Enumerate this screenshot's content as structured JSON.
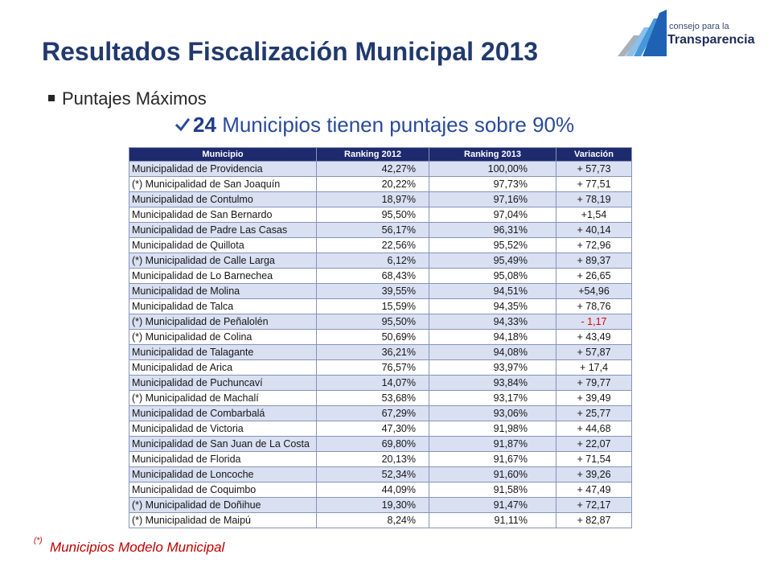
{
  "title": "Resultados Fiscalización Municipal 2013",
  "logo": {
    "line1": "consejo para la",
    "line2": "Transparencia",
    "icon": "logo-mark-icon"
  },
  "bullet": {
    "icon": "square-bullet-icon",
    "text": "Puntajes Máximos"
  },
  "highlight": {
    "icon": "check-icon",
    "number": "24",
    "text": "Municipios tienen puntajes sobre 90%"
  },
  "table": {
    "headers": [
      "Municipio",
      "Ranking 2012",
      "Ranking 2013",
      "Variación"
    ],
    "rows": [
      {
        "municipio": "Municipalidad de Providencia",
        "ranking_2012": "42,27%",
        "ranking_2013": "100,00%",
        "variacion": "+ 57,73"
      },
      {
        "municipio": "(*) Municipalidad de San Joaquín",
        "ranking_2012": "20,22%",
        "ranking_2013": "97,73%",
        "variacion": "+ 77,51"
      },
      {
        "municipio": "Municipalidad de Contulmo",
        "ranking_2012": "18,97%",
        "ranking_2013": "97,16%",
        "variacion": "+ 78,19"
      },
      {
        "municipio": "Municipalidad de San Bernardo",
        "ranking_2012": "95,50%",
        "ranking_2013": "97,04%",
        "variacion": "+1,54"
      },
      {
        "municipio": "Municipalidad de Padre Las Casas",
        "ranking_2012": "56,17%",
        "ranking_2013": "96,31%",
        "variacion": "+ 40,14"
      },
      {
        "municipio": "Municipalidad de Quillota",
        "ranking_2012": "22,56%",
        "ranking_2013": "95,52%",
        "variacion": "+ 72,96"
      },
      {
        "municipio": "(*) Municipalidad de Calle Larga",
        "ranking_2012": "6,12%",
        "ranking_2013": "95,49%",
        "variacion": "+ 89,37"
      },
      {
        "municipio": "Municipalidad de Lo Barnechea",
        "ranking_2012": "68,43%",
        "ranking_2013": "95,08%",
        "variacion": "+ 26,65"
      },
      {
        "municipio": "Municipalidad de Molina",
        "ranking_2012": "39,55%",
        "ranking_2013": "94,51%",
        "variacion": "+54,96"
      },
      {
        "municipio": "Municipalidad de Talca",
        "ranking_2012": "15,59%",
        "ranking_2013": "94,35%",
        "variacion": "+ 78,76"
      },
      {
        "municipio": "(*) Municipalidad de Peñalolén",
        "ranking_2012": "95,50%",
        "ranking_2013": "94,33%",
        "variacion": "- 1,17"
      },
      {
        "municipio": "(*) Municipalidad de Colina",
        "ranking_2012": "50,69%",
        "ranking_2013": "94,18%",
        "variacion": "+ 43,49"
      },
      {
        "municipio": "Municipalidad de Talagante",
        "ranking_2012": "36,21%",
        "ranking_2013": "94,08%",
        "variacion": "+ 57,87"
      },
      {
        "municipio": "Municipalidad de Arica",
        "ranking_2012": "76,57%",
        "ranking_2013": "93,97%",
        "variacion": "+ 17,4"
      },
      {
        "municipio": "Municipalidad de Puchuncaví",
        "ranking_2012": "14,07%",
        "ranking_2013": "93,84%",
        "variacion": "+ 79,77"
      },
      {
        "municipio": "(*) Municipalidad de Machalí",
        "ranking_2012": "53,68%",
        "ranking_2013": "93,17%",
        "variacion": "+ 39,49"
      },
      {
        "municipio": "Municipalidad de Combarbalá",
        "ranking_2012": "67,29%",
        "ranking_2013": "93,06%",
        "variacion": "+ 25,77"
      },
      {
        "municipio": "Municipalidad de Victoria",
        "ranking_2012": "47,30%",
        "ranking_2013": "91,98%",
        "variacion": "+ 44,68"
      },
      {
        "municipio": "Municipalidad de San Juan de La Costa",
        "ranking_2012": "69,80%",
        "ranking_2013": "91,87%",
        "variacion": "+ 22,07"
      },
      {
        "municipio": "Municipalidad de Florida",
        "ranking_2012": "20,13%",
        "ranking_2013": "91,67%",
        "variacion": "+ 71,54"
      },
      {
        "municipio": "Municipalidad de Loncoche",
        "ranking_2012": "52,34%",
        "ranking_2013": "91,60%",
        "variacion": "+ 39,26"
      },
      {
        "municipio": "Municipalidad de Coquimbo",
        "ranking_2012": "44,09%",
        "ranking_2013": "91,58%",
        "variacion": "+ 47,49"
      },
      {
        "municipio": "(*) Municipalidad de Doñihue",
        "ranking_2012": "19,30%",
        "ranking_2013": "91,47%",
        "variacion": "+ 72,17"
      },
      {
        "municipio": "(*) Municipalidad de Maipú",
        "ranking_2012": "8,24%",
        "ranking_2013": "91,11%",
        "variacion": "+ 82,87"
      }
    ]
  },
  "footnote": {
    "marker": "(*)",
    "text": "Municipios Modelo Municipal"
  },
  "colors": {
    "title": "#213a6d",
    "bullet_text": "#262626",
    "highlight_number": "#1f3c88",
    "highlight_text": "#2a4b9b",
    "table_header_bg": "#1e2a6e",
    "table_row_alt": "#d9e0f2",
    "table_grid": "#8793b8",
    "table_text": "#161616",
    "negative": "#e00000",
    "footnote": "#c00000",
    "logo_text": "#1c2d5a",
    "logo_tagline": "#3a4a70"
  }
}
